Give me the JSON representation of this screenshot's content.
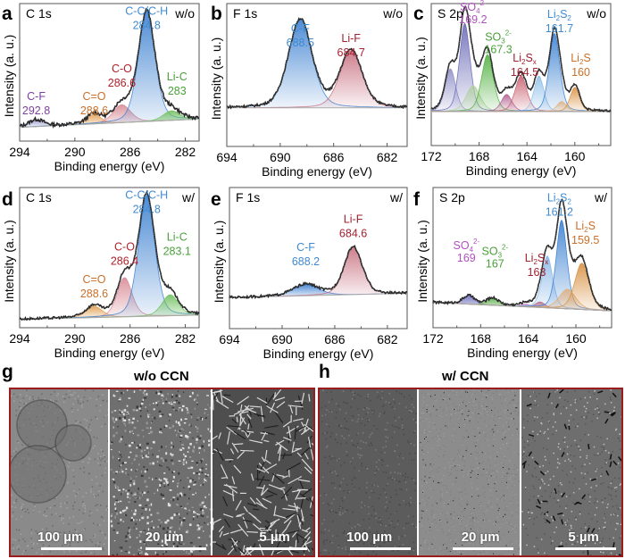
{
  "figure": {
    "sem": {
      "g": {
        "letter": "g",
        "title": "w/o CCN",
        "frame_color": "#9b1c1c",
        "tiles": [
          {
            "scale": "100 µm",
            "texture": "smooth-crust"
          },
          {
            "scale": "20 µm",
            "texture": "dense-flakes"
          },
          {
            "scale": "5 µm",
            "texture": "nanosheet-network"
          }
        ]
      },
      "h": {
        "letter": "h",
        "title": "w/ CCN",
        "frame_color": "#9b1c1c",
        "tiles": [
          {
            "scale": "100 µm",
            "texture": "smooth-dark"
          },
          {
            "scale": "20 µm",
            "texture": "uniform-fine"
          },
          {
            "scale": "5 µm",
            "texture": "granular-cracked"
          }
        ]
      }
    }
  },
  "chart_data": [
    {
      "id": "a",
      "type": "line",
      "title": "C 1s",
      "condition": "w/o",
      "xlabel": "Binding energy (eV)",
      "ylabel": "Intensity (a. u.)",
      "xlim": [
        294,
        281
      ],
      "xticks": [
        294,
        290,
        286,
        282
      ],
      "baseline": [
        0.1,
        0.16
      ],
      "noise": 0.012,
      "peaks": [
        {
          "name": "C-F",
          "center": 292.8,
          "label": "C-F\n292.8",
          "color": "#7a3fa0",
          "fill": "#8a8ac8",
          "height": 0.05,
          "width": 0.55
        },
        {
          "name": "C=O",
          "center": 288.6,
          "label": "C=O\n288.6",
          "color": "#c8702a",
          "fill": "#e3a055",
          "height": 0.07,
          "width": 0.5
        },
        {
          "name": "C-O",
          "center": 286.6,
          "label": "C-O\n286.6",
          "color": "#b0202a",
          "fill": "#d88a95",
          "height": 0.13,
          "width": 0.65
        },
        {
          "name": "C-C/C-H",
          "center": 284.8,
          "label": "C-C/C-H\n284.8",
          "color": "#3f8ad0",
          "fill": "#3a7fd0",
          "height": 0.8,
          "width": 0.62
        },
        {
          "name": "Li-C",
          "center": 283,
          "label": "Li-C\n283",
          "color": "#4aa03a",
          "fill": "#70c060",
          "height": 0.07,
          "width": 0.6
        }
      ]
    },
    {
      "id": "b",
      "type": "line",
      "title": "F 1s",
      "condition": "w/o",
      "xlabel": "Binding energy (eV)",
      "ylabel": "Intensity (a. u.)",
      "xlim": [
        694,
        680.5
      ],
      "xticks": [
        694,
        690,
        686,
        682
      ],
      "baseline": [
        0.27,
        0.27
      ],
      "noise": 0.008,
      "peaks": [
        {
          "name": "C-F",
          "center": 688.5,
          "label": "C-F\n688.5",
          "color": "#3f8ad0",
          "fill": "#3a7fd0",
          "height": 0.62,
          "width": 0.9
        },
        {
          "name": "Li-F",
          "center": 684.7,
          "label": "Li-F\n684.7",
          "color": "#a02030",
          "fill": "#c87080",
          "height": 0.4,
          "width": 0.85
        }
      ]
    },
    {
      "id": "c",
      "type": "line",
      "title": "S 2p",
      "condition": "w/o",
      "xlabel": "Binding energy (eV)",
      "ylabel": "Intensity (a. u.)",
      "xlim": [
        172,
        157
      ],
      "xticks": [
        172,
        168,
        164,
        160
      ],
      "baseline": [
        0.24,
        0.24
      ],
      "noise": 0.006,
      "peaks": [
        {
          "name": "SO4(2-) b",
          "center": 170.4,
          "label": "",
          "color": "#8a8ac8",
          "fill": "#9090c8",
          "height": 0.3,
          "width": 0.45
        },
        {
          "name": "SO4(2-)",
          "center": 169.2,
          "label": "SO4 2- 169.2",
          "labelkind": "so4",
          "color": "#b050c0",
          "fill": "#6a6ab8",
          "height": 0.62,
          "width": 0.45
        },
        {
          "name": "SO3(2-) b",
          "center": 168.5,
          "label": "",
          "color": "#a0c890",
          "fill": "#b0d0a0",
          "height": 0.18,
          "width": 0.6
        },
        {
          "name": "SO3(2-)",
          "center": 167.3,
          "label": "SO3 2- 167.3",
          "labelkind": "so3",
          "color": "#4aa03a",
          "fill": "#50b040",
          "height": 0.4,
          "width": 0.5
        },
        {
          "name": "Li2Sx b",
          "center": 165.7,
          "label": "",
          "color": "#b05090",
          "fill": "#b06090",
          "height": 0.12,
          "width": 0.45
        },
        {
          "name": "Li2Sx",
          "center": 164.5,
          "label": "Li2Sx 164.5",
          "labelkind": "li2sx",
          "color": "#a02030",
          "fill": "#c86070",
          "height": 0.25,
          "width": 0.5
        },
        {
          "name": "Li2S2 b",
          "center": 163.0,
          "label": "",
          "color": "#80b0e0",
          "fill": "#90c0e8",
          "height": 0.25,
          "width": 0.42
        },
        {
          "name": "Li2S2",
          "center": 161.7,
          "label": "Li2S2 161.7",
          "labelkind": "li2s2",
          "color": "#3f8ad0",
          "fill": "#3a80d0",
          "height": 0.55,
          "width": 0.45
        },
        {
          "name": "Li2S b",
          "center": 161.1,
          "label": "",
          "color": "#d0a070",
          "fill": "#e0b080",
          "height": 0.07,
          "width": 0.4
        },
        {
          "name": "Li2S",
          "center": 160,
          "label": "Li2S 160",
          "labelkind": "li2s",
          "color": "#c8702a",
          "fill": "#d89040",
          "height": 0.17,
          "width": 0.4
        }
      ]
    },
    {
      "id": "d",
      "type": "line",
      "title": "C 1s",
      "condition": "w/",
      "xlabel": "Binding energy (eV)",
      "ylabel": "Intensity (a. u.)",
      "xlim": [
        294,
        281
      ],
      "xticks": [
        294,
        290,
        286,
        282
      ],
      "baseline": [
        0.06,
        0.09
      ],
      "noise": 0.008,
      "peaks": [
        {
          "name": "C=O",
          "center": 288.6,
          "label": "C=O\n288.6",
          "color": "#c8702a",
          "fill": "#e0a050",
          "height": 0.08,
          "width": 0.6
        },
        {
          "name": "C-O",
          "center": 286.4,
          "label": "C-O\n286.4",
          "color": "#b0202a",
          "fill": "#d88a95",
          "height": 0.28,
          "width": 0.55
        },
        {
          "name": "C-C/C-H",
          "center": 284.8,
          "label": "C-C/C-H\n284.8",
          "color": "#3f8ad0",
          "fill": "#3a7fd0",
          "height": 0.86,
          "width": 0.6
        },
        {
          "name": "Li-C",
          "center": 283.1,
          "label": "Li-C\n283.1",
          "color": "#4aa03a",
          "fill": "#70c060",
          "height": 0.15,
          "width": 0.6
        }
      ]
    },
    {
      "id": "e",
      "type": "line",
      "title": "F 1s",
      "condition": "w/",
      "xlabel": "Binding energy (eV)",
      "ylabel": "Intensity (a. u.)",
      "xlim": [
        694,
        680.5
      ],
      "xticks": [
        694,
        690,
        686,
        682
      ],
      "baseline": [
        0.22,
        0.25
      ],
      "noise": 0.008,
      "peaks": [
        {
          "name": "C-F",
          "center": 688.2,
          "label": "C-F\n688.2",
          "color": "#3f8ad0",
          "fill": "#3a7fd0",
          "height": 0.08,
          "width": 1.0
        },
        {
          "name": "Li-F",
          "center": 684.6,
          "label": "Li-F\n684.6",
          "color": "#a02030",
          "fill": "#c87080",
          "height": 0.34,
          "width": 0.7
        }
      ]
    },
    {
      "id": "f",
      "type": "line",
      "title": "S 2p",
      "condition": "w/",
      "xlabel": "Binding energy (eV)",
      "ylabel": "Intensity (a. u.)",
      "xlim": [
        172,
        157
      ],
      "xticks": [
        172,
        168,
        164,
        160
      ],
      "baseline": [
        0.18,
        0.12
      ],
      "noise": 0.008,
      "peaks": [
        {
          "name": "SO4(2-)",
          "center": 169,
          "label": "SO4 2- 169",
          "labelkind": "so4",
          "color": "#b050c0",
          "fill": "#7070c0",
          "height": 0.06,
          "width": 0.5
        },
        {
          "name": "SO3(2-)",
          "center": 167,
          "label": "SO3 2- 167",
          "labelkind": "so3",
          "color": "#4aa03a",
          "fill": "#60b050",
          "height": 0.05,
          "width": 0.5
        },
        {
          "name": "Li2Sx b",
          "center": 164.2,
          "label": "",
          "color": "#b050c0",
          "fill": "#c080c0",
          "height": 0.02,
          "width": 0.4
        },
        {
          "name": "Li2Sx",
          "center": 163,
          "label": "Li2Sx 163",
          "labelkind": "li2sx",
          "color": "#a02030",
          "fill": "#c06070",
          "height": 0.04,
          "width": 0.4
        },
        {
          "name": "Li2S2 b",
          "center": 162.4,
          "label": "",
          "color": "#80b0e0",
          "fill": "#8ab8e8",
          "height": 0.37,
          "width": 0.45
        },
        {
          "name": "Li2S2",
          "center": 161.2,
          "label": "Li2S2 161.2",
          "labelkind": "li2s2",
          "color": "#3f8ad0",
          "fill": "#3a80d0",
          "height": 0.63,
          "width": 0.45
        },
        {
          "name": "Li2S b",
          "center": 160.7,
          "label": "",
          "color": "#d0a070",
          "fill": "#e0b080",
          "height": 0.14,
          "width": 0.7
        },
        {
          "name": "Li2S",
          "center": 159.5,
          "label": "Li2S 159.5",
          "labelkind": "li2s",
          "color": "#c8702a",
          "fill": "#d89040",
          "height": 0.33,
          "width": 0.6
        }
      ]
    }
  ]
}
